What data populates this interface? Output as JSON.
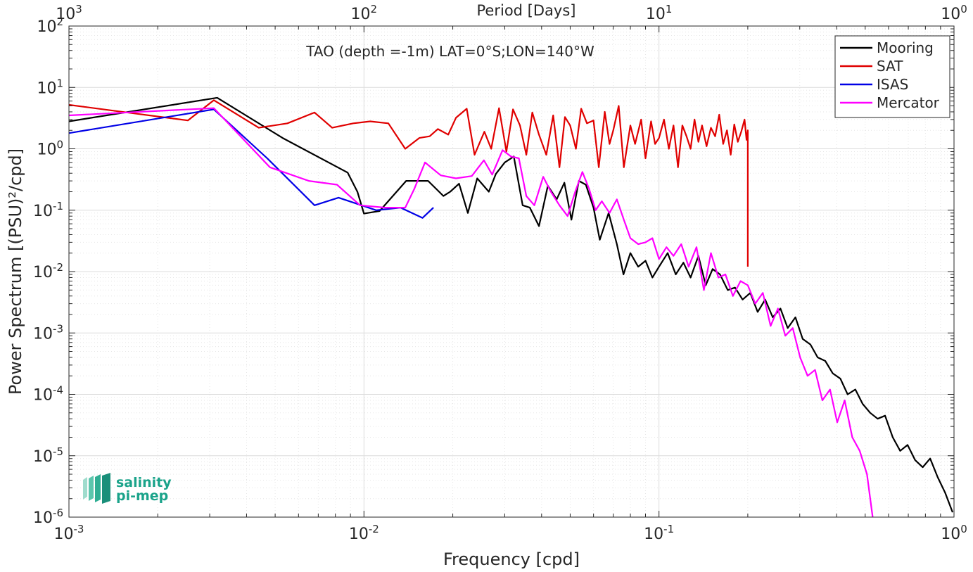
{
  "chart_data": {
    "type": "line",
    "title": "TAO (depth =-1m) LAT=0°S;LON=140°W",
    "xlabel": "Frequency [cpd]",
    "ylabel": "Power Spectrum [(PSU)²/cpd]",
    "top_axis_label": "Period [Days]",
    "x_scale": "log",
    "y_scale": "log",
    "xlim": [
      0.001,
      1
    ],
    "ylim": [
      1e-06,
      100
    ],
    "grid": true,
    "legend_position": "top-right",
    "x_ticks": [
      {
        "base": "10",
        "exp": "-3"
      },
      {
        "base": "10",
        "exp": "-2"
      },
      {
        "base": "10",
        "exp": "-1"
      },
      {
        "base": "10",
        "exp": "0"
      }
    ],
    "top_ticks": [
      {
        "base": "10",
        "exp": "3"
      },
      {
        "base": "10",
        "exp": "2"
      },
      {
        "base": "10",
        "exp": "1"
      },
      {
        "base": "10",
        "exp": "0"
      }
    ],
    "y_ticks": [
      {
        "base": "10",
        "exp": "2"
      },
      {
        "base": "10",
        "exp": "1"
      },
      {
        "base": "10",
        "exp": "0"
      },
      {
        "base": "10",
        "exp": "-1"
      },
      {
        "base": "10",
        "exp": "-2"
      },
      {
        "base": "10",
        "exp": "-3"
      },
      {
        "base": "10",
        "exp": "-4"
      },
      {
        "base": "10",
        "exp": "-5"
      },
      {
        "base": "10",
        "exp": "-6"
      }
    ],
    "series": [
      {
        "name": "Mooring",
        "color": "#000000",
        "points": [
          [
            0.001,
            2.8
          ],
          [
            0.00318,
            6.8
          ],
          [
            0.0053,
            1.5
          ],
          [
            0.0088,
            0.41
          ],
          [
            0.0095,
            0.2
          ],
          [
            0.01,
            0.088
          ],
          [
            0.0113,
            0.097
          ],
          [
            0.0139,
            0.3
          ],
          [
            0.0165,
            0.3
          ],
          [
            0.0186,
            0.17
          ],
          [
            0.0196,
            0.2
          ],
          [
            0.021,
            0.27
          ],
          [
            0.0225,
            0.09
          ],
          [
            0.0242,
            0.33
          ],
          [
            0.0265,
            0.2
          ],
          [
            0.028,
            0.39
          ],
          [
            0.03,
            0.6
          ],
          [
            0.0322,
            0.75
          ],
          [
            0.0345,
            0.12
          ],
          [
            0.0365,
            0.11
          ],
          [
            0.0392,
            0.055
          ],
          [
            0.042,
            0.25
          ],
          [
            0.045,
            0.15
          ],
          [
            0.0478,
            0.28
          ],
          [
            0.0505,
            0.07
          ],
          [
            0.0535,
            0.3
          ],
          [
            0.0565,
            0.26
          ],
          [
            0.06,
            0.11
          ],
          [
            0.063,
            0.033
          ],
          [
            0.0675,
            0.09
          ],
          [
            0.072,
            0.028
          ],
          [
            0.0758,
            0.009
          ],
          [
            0.08,
            0.02
          ],
          [
            0.085,
            0.012
          ],
          [
            0.09,
            0.015
          ],
          [
            0.095,
            0.008
          ],
          [
            0.1,
            0.012
          ],
          [
            0.107,
            0.02
          ],
          [
            0.114,
            0.009
          ],
          [
            0.121,
            0.014
          ],
          [
            0.128,
            0.008
          ],
          [
            0.136,
            0.018
          ],
          [
            0.144,
            0.006
          ],
          [
            0.152,
            0.011
          ],
          [
            0.161,
            0.009
          ],
          [
            0.171,
            0.005
          ],
          [
            0.181,
            0.0055
          ],
          [
            0.192,
            0.0035
          ],
          [
            0.204,
            0.0045
          ],
          [
            0.216,
            0.0022
          ],
          [
            0.229,
            0.0035
          ],
          [
            0.243,
            0.0018
          ],
          [
            0.258,
            0.0025
          ],
          [
            0.273,
            0.0012
          ],
          [
            0.29,
            0.0018
          ],
          [
            0.307,
            0.0008
          ],
          [
            0.326,
            0.00065
          ],
          [
            0.345,
            0.0004
          ],
          [
            0.366,
            0.00035
          ],
          [
            0.388,
            0.00022
          ],
          [
            0.412,
            0.00018
          ],
          [
            0.436,
            0.0001
          ],
          [
            0.463,
            0.00012
          ],
          [
            0.49,
            7e-05
          ],
          [
            0.52,
            5e-05
          ],
          [
            0.551,
            4e-05
          ],
          [
            0.584,
            4.5e-05
          ],
          [
            0.62,
            2e-05
          ],
          [
            0.657,
            1.2e-05
          ],
          [
            0.696,
            1.5e-05
          ],
          [
            0.738,
            8.5e-06
          ],
          [
            0.783,
            6.5e-06
          ],
          [
            0.83,
            9e-06
          ],
          [
            0.88,
            4.5e-06
          ],
          [
            0.933,
            2.5e-06
          ],
          [
            0.989,
            1.2e-06
          ]
        ]
      },
      {
        "name": "SAT",
        "color": "#e00000",
        "points": [
          [
            0.001,
            5.2
          ],
          [
            0.00253,
            2.9
          ],
          [
            0.0031,
            6.2
          ],
          [
            0.0044,
            2.2
          ],
          [
            0.0055,
            2.6
          ],
          [
            0.0068,
            3.9
          ],
          [
            0.0078,
            2.2
          ],
          [
            0.0092,
            2.6
          ],
          [
            0.0105,
            2.8
          ],
          [
            0.0121,
            2.6
          ],
          [
            0.0138,
            1.0
          ],
          [
            0.0154,
            1.5
          ],
          [
            0.0167,
            1.6
          ],
          [
            0.0178,
            2.1
          ],
          [
            0.0193,
            1.7
          ],
          [
            0.0205,
            3.2
          ],
          [
            0.0223,
            4.5
          ],
          [
            0.0237,
            0.8
          ],
          [
            0.0256,
            1.9
          ],
          [
            0.027,
            1.0
          ],
          [
            0.0287,
            4.6
          ],
          [
            0.0304,
            0.9
          ],
          [
            0.032,
            4.4
          ],
          [
            0.0338,
            2.4
          ],
          [
            0.0355,
            0.8
          ],
          [
            0.0372,
            3.9
          ],
          [
            0.0392,
            1.7
          ],
          [
            0.0415,
            0.8
          ],
          [
            0.0438,
            3.5
          ],
          [
            0.046,
            0.5
          ],
          [
            0.048,
            3.3
          ],
          [
            0.05,
            2.4
          ],
          [
            0.0523,
            1.0
          ],
          [
            0.0545,
            4.5
          ],
          [
            0.057,
            2.6
          ],
          [
            0.06,
            2.9
          ],
          [
            0.0625,
            0.5
          ],
          [
            0.0655,
            4.0
          ],
          [
            0.068,
            1.2
          ],
          [
            0.07,
            2.0
          ],
          [
            0.073,
            5.0
          ],
          [
            0.076,
            0.5
          ],
          [
            0.08,
            2.4
          ],
          [
            0.083,
            1.2
          ],
          [
            0.087,
            3.0
          ],
          [
            0.09,
            0.7
          ],
          [
            0.094,
            2.8
          ],
          [
            0.097,
            1.2
          ],
          [
            0.1,
            1.5
          ],
          [
            0.104,
            3.0
          ],
          [
            0.108,
            1.0
          ],
          [
            0.112,
            2.4
          ],
          [
            0.116,
            0.5
          ],
          [
            0.12,
            2.4
          ],
          [
            0.124,
            1.6
          ],
          [
            0.128,
            1.0
          ],
          [
            0.132,
            3.0
          ],
          [
            0.136,
            1.3
          ],
          [
            0.14,
            2.4
          ],
          [
            0.145,
            1.1
          ],
          [
            0.15,
            2.2
          ],
          [
            0.155,
            1.6
          ],
          [
            0.16,
            3.6
          ],
          [
            0.165,
            1.2
          ],
          [
            0.17,
            2.0
          ],
          [
            0.175,
            0.8
          ],
          [
            0.18,
            2.5
          ],
          [
            0.185,
            1.3
          ],
          [
            0.19,
            1.9
          ],
          [
            0.195,
            3.0
          ],
          [
            0.198,
            1.4
          ],
          [
            0.2,
            2.0
          ],
          [
            0.2,
            0.012
          ]
        ]
      },
      {
        "name": "ISAS",
        "color": "#0000e6",
        "points": [
          [
            0.001,
            1.8
          ],
          [
            0.0031,
            4.4
          ],
          [
            0.0047,
            0.7
          ],
          [
            0.0068,
            0.12
          ],
          [
            0.0082,
            0.16
          ],
          [
            0.011,
            0.1
          ],
          [
            0.0133,
            0.11
          ],
          [
            0.0158,
            0.075
          ],
          [
            0.0172,
            0.11
          ]
        ]
      },
      {
        "name": "Mercator",
        "color": "#ff00ff",
        "points": [
          [
            0.001,
            3.5
          ],
          [
            0.0031,
            4.6
          ],
          [
            0.0048,
            0.5
          ],
          [
            0.0065,
            0.3
          ],
          [
            0.0081,
            0.26
          ],
          [
            0.0097,
            0.12
          ],
          [
            0.0118,
            0.11
          ],
          [
            0.0138,
            0.11
          ],
          [
            0.0148,
            0.22
          ],
          [
            0.0161,
            0.6
          ],
          [
            0.0182,
            0.37
          ],
          [
            0.0205,
            0.33
          ],
          [
            0.0232,
            0.36
          ],
          [
            0.0255,
            0.65
          ],
          [
            0.0272,
            0.38
          ],
          [
            0.0295,
            0.95
          ],
          [
            0.0315,
            0.75
          ],
          [
            0.0335,
            0.7
          ],
          [
            0.0355,
            0.17
          ],
          [
            0.0378,
            0.12
          ],
          [
            0.0405,
            0.35
          ],
          [
            0.043,
            0.2
          ],
          [
            0.046,
            0.12
          ],
          [
            0.049,
            0.08
          ],
          [
            0.052,
            0.2
          ],
          [
            0.055,
            0.42
          ],
          [
            0.058,
            0.22
          ],
          [
            0.061,
            0.1
          ],
          [
            0.064,
            0.14
          ],
          [
            0.068,
            0.09
          ],
          [
            0.072,
            0.15
          ],
          [
            0.076,
            0.07
          ],
          [
            0.08,
            0.035
          ],
          [
            0.085,
            0.028
          ],
          [
            0.09,
            0.03
          ],
          [
            0.095,
            0.035
          ],
          [
            0.1,
            0.016
          ],
          [
            0.106,
            0.025
          ],
          [
            0.112,
            0.018
          ],
          [
            0.119,
            0.028
          ],
          [
            0.126,
            0.012
          ],
          [
            0.134,
            0.025
          ],
          [
            0.142,
            0.005
          ],
          [
            0.15,
            0.02
          ],
          [
            0.159,
            0.008
          ],
          [
            0.168,
            0.009
          ],
          [
            0.178,
            0.004
          ],
          [
            0.189,
            0.007
          ],
          [
            0.2,
            0.006
          ],
          [
            0.212,
            0.003
          ],
          [
            0.225,
            0.0045
          ],
          [
            0.239,
            0.0013
          ],
          [
            0.253,
            0.0025
          ],
          [
            0.268,
            0.0009
          ],
          [
            0.284,
            0.0012
          ],
          [
            0.301,
            0.0004
          ],
          [
            0.319,
            0.0002
          ],
          [
            0.338,
            0.00025
          ],
          [
            0.358,
            8e-05
          ],
          [
            0.38,
            0.00012
          ],
          [
            0.402,
            3.5e-05
          ],
          [
            0.426,
            8e-05
          ],
          [
            0.452,
            2e-05
          ],
          [
            0.479,
            1.2e-05
          ],
          [
            0.507,
            5e-06
          ],
          [
            0.52,
            2e-06
          ],
          [
            0.53,
            1e-06
          ]
        ]
      }
    ]
  },
  "logo": {
    "line1": "salinity",
    "line2": "pi-mep",
    "color": "#1aa38a"
  }
}
